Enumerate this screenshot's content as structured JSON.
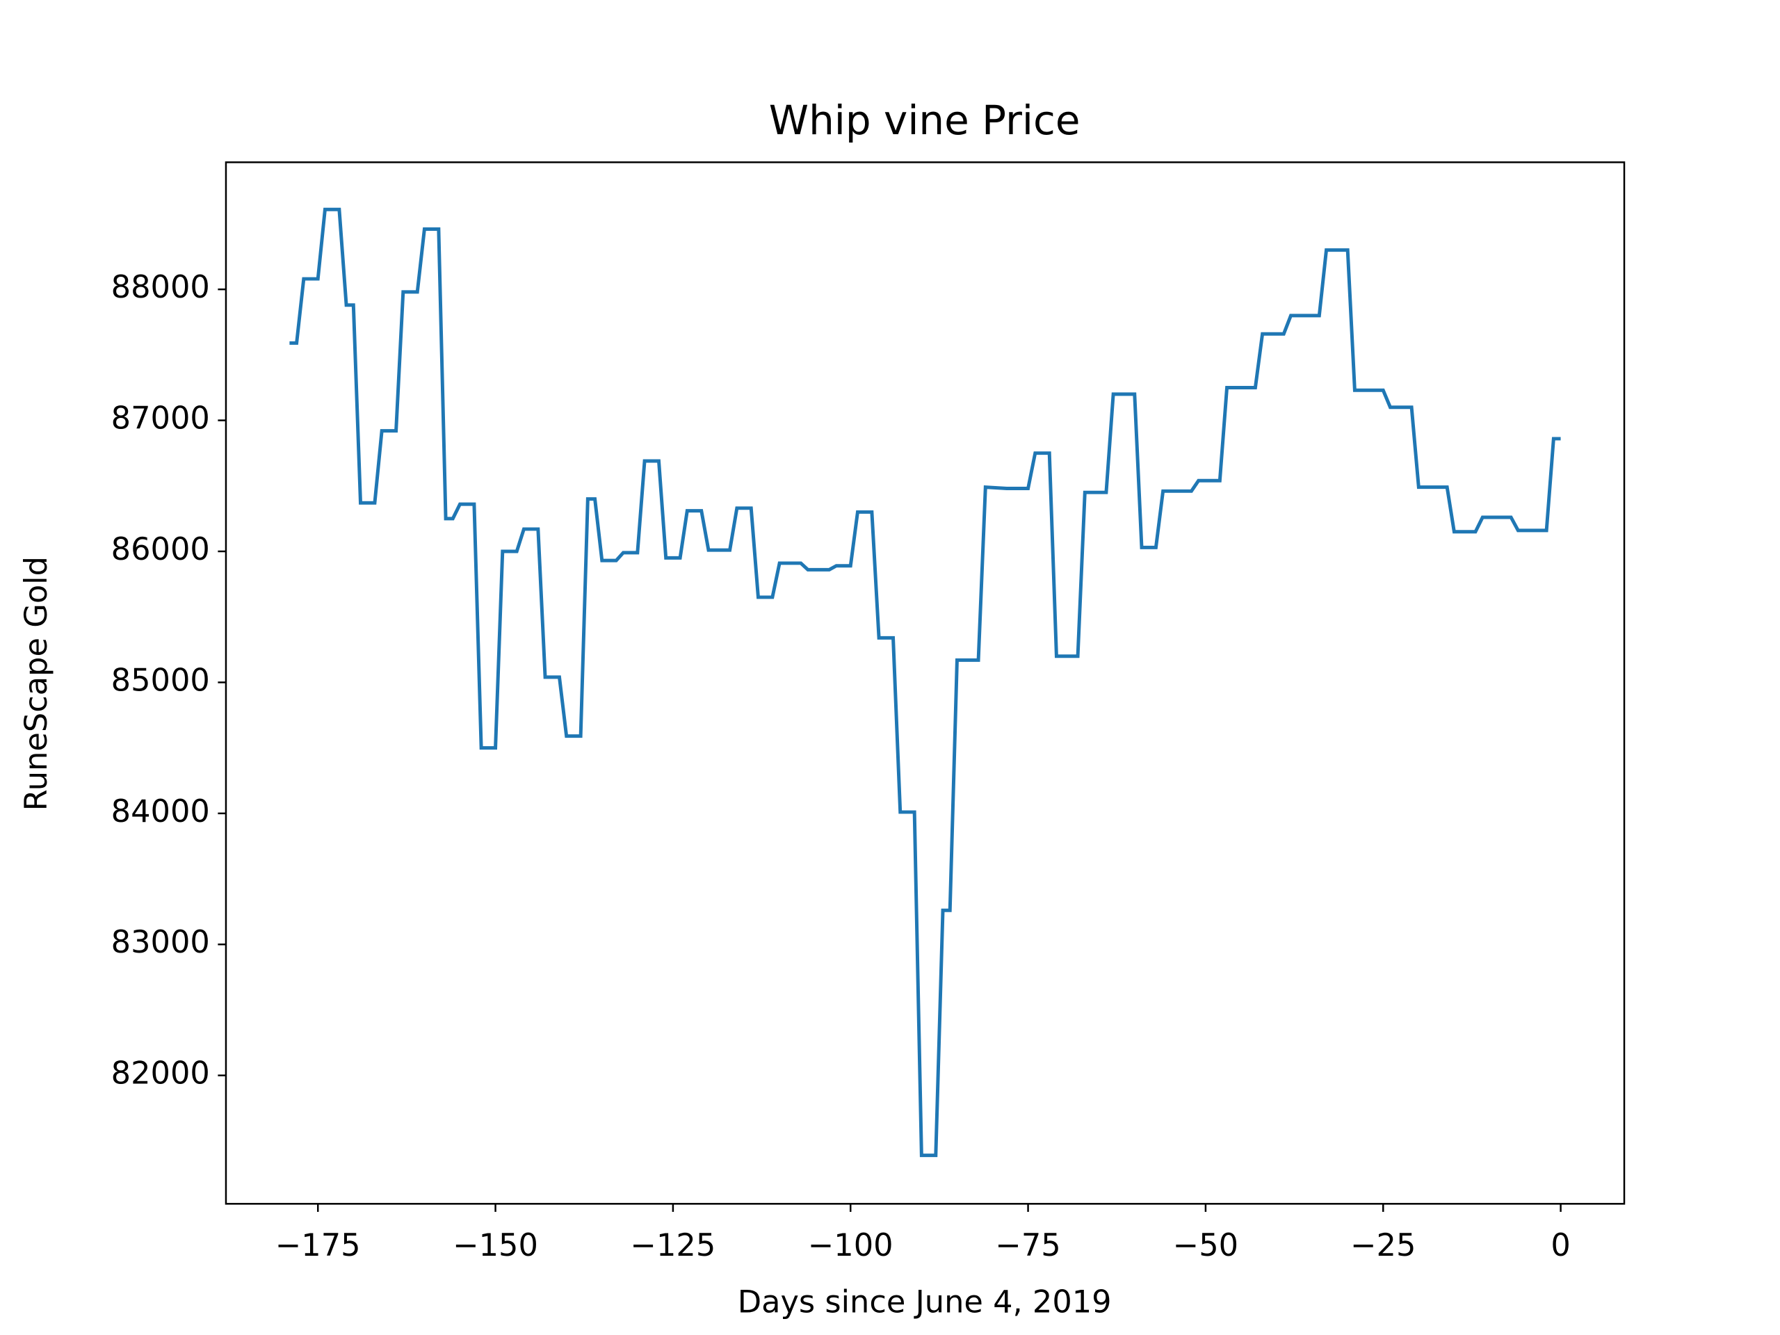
{
  "chart_data": {
    "type": "line",
    "title": "Whip vine Price",
    "xlabel": "Days since June 4, 2019",
    "ylabel": "RuneScape Gold",
    "x": [
      -179,
      -178,
      -177,
      -175,
      -174,
      -172,
      -171,
      -170,
      -169,
      -167,
      -166,
      -164,
      -163,
      -161,
      -160,
      -158,
      -157,
      -156,
      -155,
      -153,
      -152,
      -150,
      -149,
      -147,
      -146,
      -144,
      -143,
      -141,
      -140,
      -138,
      -137,
      -136,
      -135,
      -133,
      -132,
      -130,
      -129,
      -127,
      -126,
      -124,
      -123,
      -121,
      -120,
      -117,
      -116,
      -114,
      -113,
      -111,
      -110,
      -107,
      -106,
      -103,
      -102,
      -100,
      -99,
      -97,
      -96,
      -94,
      -93,
      -91,
      -90,
      -88,
      -87,
      -86,
      -85,
      -82,
      -81,
      -78,
      -75,
      -74,
      -72,
      -71,
      -68,
      -67,
      -64,
      -63,
      -60,
      -59,
      -57,
      -56,
      -52,
      -51,
      -48,
      -47,
      -43,
      -42,
      -39,
      -38,
      -34,
      -33,
      -30,
      -29,
      -25,
      -24,
      -21,
      -20,
      -16,
      -15,
      -12,
      -11,
      -7,
      -6,
      -2,
      -1,
      0
    ],
    "series": [
      {
        "name": "Whip vine",
        "color": "#1f77b4",
        "values": [
          87590,
          87590,
          88080,
          88080,
          88610,
          88610,
          87880,
          87880,
          86370,
          86370,
          86920,
          86920,
          87980,
          87980,
          88460,
          88460,
          86250,
          86250,
          86360,
          86360,
          84500,
          84500,
          86000,
          86000,
          86170,
          86170,
          85040,
          85040,
          84590,
          84590,
          86400,
          86400,
          85930,
          85930,
          85990,
          85990,
          86690,
          86690,
          85950,
          85950,
          86310,
          86310,
          86010,
          86010,
          86330,
          86330,
          85650,
          85650,
          85910,
          85910,
          85860,
          85860,
          85890,
          85890,
          86300,
          86300,
          85340,
          85340,
          84010,
          84010,
          81390,
          81390,
          83260,
          83260,
          85170,
          85170,
          86490,
          86480,
          86480,
          86750,
          86750,
          85200,
          85200,
          86450,
          86450,
          87200,
          87200,
          86030,
          86030,
          86460,
          86460,
          86540,
          86540,
          87250,
          87250,
          87660,
          87660,
          87800,
          87800,
          88300,
          88300,
          87230,
          87230,
          87100,
          87100,
          86490,
          86490,
          86150,
          86150,
          86260,
          86260,
          86160,
          86160,
          86860,
          86860
        ]
      }
    ],
    "xlim": [
      -187.95,
      8.95
    ],
    "ylim": [
      81020,
      88970
    ],
    "xticks": [
      {
        "value": -175,
        "label": "−175"
      },
      {
        "value": -150,
        "label": "−150"
      },
      {
        "value": -125,
        "label": "−125"
      },
      {
        "value": -100,
        "label": "−100"
      },
      {
        "value": -75,
        "label": "−75"
      },
      {
        "value": -50,
        "label": "−50"
      },
      {
        "value": -25,
        "label": "−25"
      },
      0
    ],
    "yticks": [
      82000,
      83000,
      84000,
      85000,
      86000,
      87000,
      88000
    ],
    "grid": false
  }
}
